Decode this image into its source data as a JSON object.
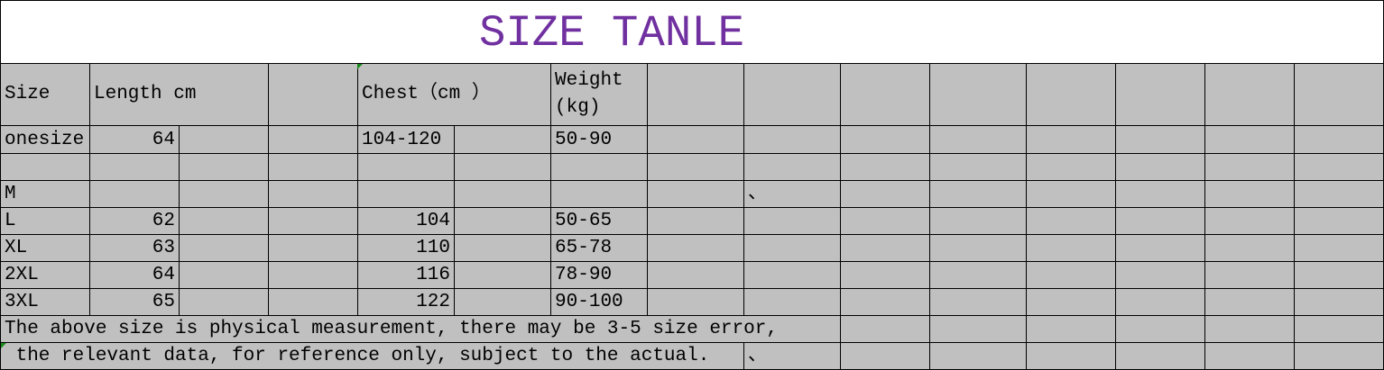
{
  "title": "SIZE TANLE",
  "title_color": "#7030A0",
  "header": {
    "size": "Size",
    "length": "Length cm",
    "chest": "Chest（cm ）",
    "weight_line1": "Weight",
    "weight_line2": "(kg)"
  },
  "rows": [
    {
      "size": "onesize",
      "length": "64",
      "chest": "104-120",
      "weight": "50-90"
    },
    {
      "size": "",
      "length": "",
      "chest": "",
      "weight": ""
    },
    {
      "size": "M",
      "length": "",
      "chest": "",
      "weight": "",
      "extra": "、"
    },
    {
      "size": "L",
      "length": "62",
      "chest": "104",
      "weight": "50-65"
    },
    {
      "size": "XL",
      "length": "63",
      "chest": "110",
      "weight": "65-78"
    },
    {
      "size": "2XL",
      "length": "64",
      "chest": "116",
      "weight": "78-90"
    },
    {
      "size": "3XL",
      "length": "65",
      "chest": "122",
      "weight": "90-100"
    }
  ],
  "notes": [
    "The above size is physical measurement, there may be 3-5 size error,",
    " the relevant data, for reference only, subject to the actual."
  ],
  "note_extra": "、"
}
